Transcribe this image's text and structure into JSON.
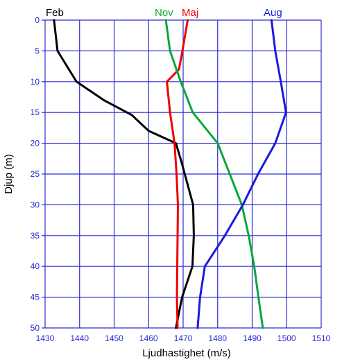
{
  "chart_data": {
    "type": "line",
    "title": "",
    "xlabel": "Ljudhastighet (m/s)",
    "ylabel": "Djup (m)",
    "xlim": [
      1430,
      1510
    ],
    "ylim": [
      0,
      50
    ],
    "y_inverted": true,
    "x_ticks": [
      1430,
      1440,
      1450,
      1460,
      1470,
      1480,
      1490,
      1500,
      1510
    ],
    "y_ticks": [
      0,
      5,
      10,
      15,
      20,
      25,
      30,
      35,
      40,
      45,
      50
    ],
    "grid": true,
    "legend": "labels placed above plot near each curve",
    "grid_color": "#2a2ad6",
    "series": [
      {
        "name": "Feb",
        "color": "#000000",
        "points": [
          [
            1432.6,
            0
          ],
          [
            1433.6,
            5
          ],
          [
            1436.9,
            8
          ],
          [
            1439.1,
            10
          ],
          [
            1447.0,
            13
          ],
          [
            1455.1,
            15.4
          ],
          [
            1460.0,
            18
          ],
          [
            1467.9,
            20
          ],
          [
            1469.5,
            23
          ],
          [
            1472.9,
            30
          ],
          [
            1473.1,
            35
          ],
          [
            1472.7,
            40
          ],
          [
            1469.7,
            45
          ],
          [
            1467.9,
            50
          ]
        ]
      },
      {
        "name": "Maj",
        "color": "#ee0000",
        "points": [
          [
            1471.3,
            0
          ],
          [
            1469.8,
            5
          ],
          [
            1468.8,
            8
          ],
          [
            1465.3,
            10
          ],
          [
            1466.2,
            15
          ],
          [
            1467.5,
            20
          ],
          [
            1468.1,
            25
          ],
          [
            1468.5,
            30
          ],
          [
            1468.4,
            35
          ],
          [
            1468.3,
            40
          ],
          [
            1468.2,
            45
          ],
          [
            1468.4,
            50
          ]
        ]
      },
      {
        "name": "Nov",
        "color": "#0aa63a",
        "points": [
          [
            1465.0,
            0
          ],
          [
            1466.2,
            5
          ],
          [
            1469.3,
            10
          ],
          [
            1472.8,
            15
          ],
          [
            1480.0,
            20
          ],
          [
            1483.5,
            25
          ],
          [
            1487.0,
            30
          ],
          [
            1489.0,
            35
          ],
          [
            1490.6,
            40
          ],
          [
            1491.8,
            45
          ],
          [
            1493.1,
            50
          ]
        ]
      },
      {
        "name": "Aug",
        "color": "#1a1adf",
        "points": [
          [
            1495.6,
            0
          ],
          [
            1496.7,
            5
          ],
          [
            1498.3,
            10
          ],
          [
            1499.8,
            15
          ],
          [
            1496.7,
            20
          ],
          [
            1491.7,
            25
          ],
          [
            1487.3,
            30
          ],
          [
            1482.1,
            35
          ],
          [
            1476.3,
            40
          ],
          [
            1474.9,
            45
          ],
          [
            1474.2,
            50
          ]
        ]
      }
    ]
  }
}
